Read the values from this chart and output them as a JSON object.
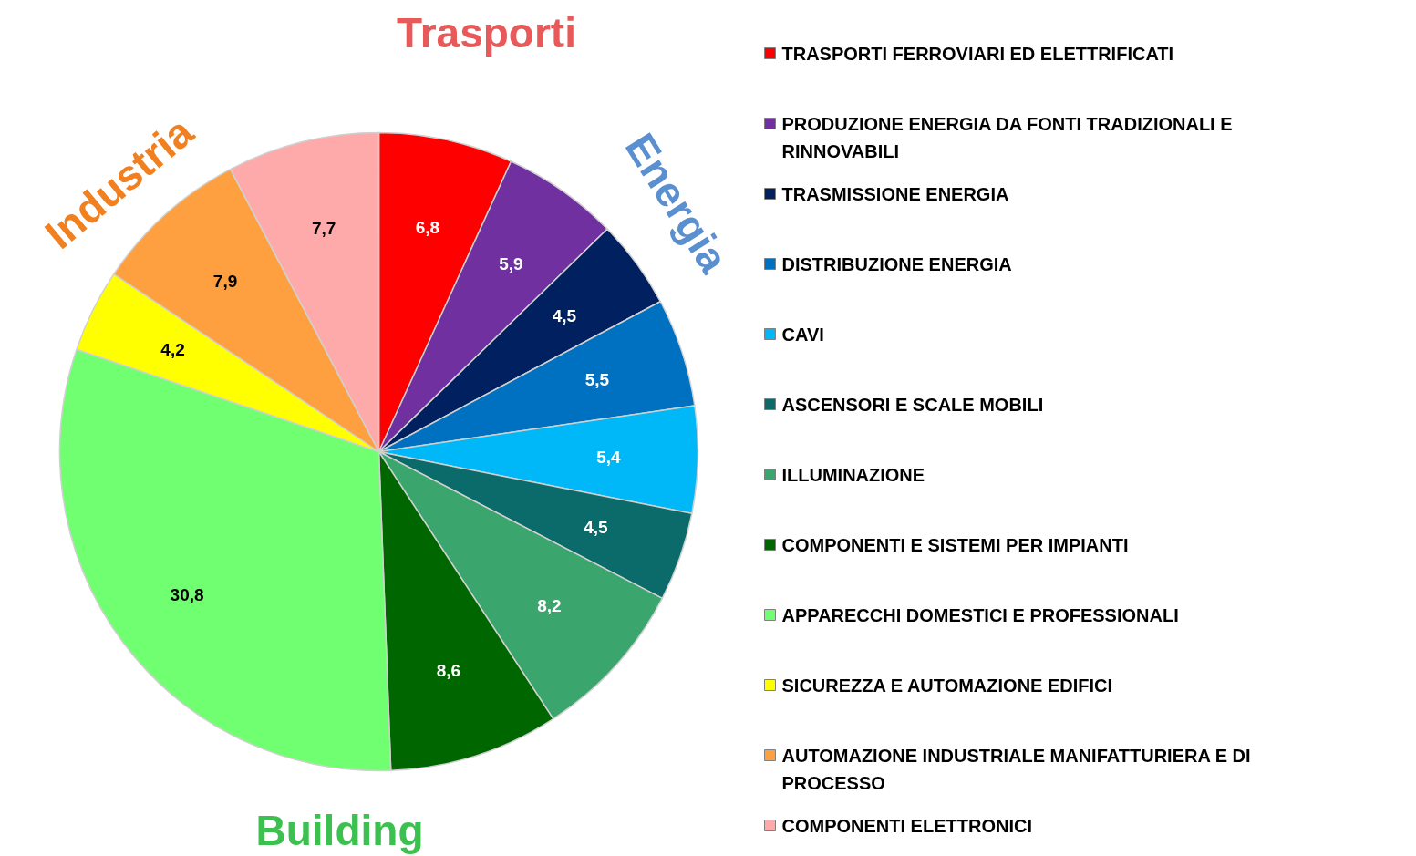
{
  "chart_data": {
    "type": "pie",
    "categories": [
      "TRASPORTI FERROVIARI ED ELETTRIFICATI",
      "PRODUZIONE ENERGIA DA FONTI TRADIZIONALI E RINNOVABILI",
      "TRASMISSIONE ENERGIA",
      "DISTRIBUZIONE ENERGIA",
      "CAVI",
      "ASCENSORI E SCALE MOBILI",
      "ILLUMINAZIONE",
      "COMPONENTI E SISTEMI PER IMPIANTI",
      "APPARECCHI DOMESTICI E PROFESSIONALI",
      "SICUREZZA E AUTOMAZIONE EDIFICI",
      "AUTOMAZIONE INDUSTRIALE MANIFATTURIERA E DI PROCESSO",
      "COMPONENTI ELETTRONICI"
    ],
    "values": [
      6.8,
      5.9,
      4.5,
      5.5,
      5.4,
      4.5,
      8.2,
      8.6,
      30.8,
      4.2,
      7.9,
      7.7
    ],
    "value_labels": [
      "6,8",
      "5,9",
      "4,5",
      "5,5",
      "5,4",
      "4,5",
      "8,2",
      "8,6",
      "30,8",
      "4,2",
      "7,9",
      "7,7"
    ],
    "colors": [
      "#ff0000",
      "#7030a0",
      "#002060",
      "#0070c0",
      "#00b8f8",
      "#0b6b6b",
      "#3aa66e",
      "#006600",
      "#70ff70",
      "#ffff00",
      "#ffa040",
      "#ffaaaa"
    ],
    "annotations": [
      "Trasporti",
      "Energia",
      "Building",
      "Industria"
    ],
    "legend": "right"
  }
}
